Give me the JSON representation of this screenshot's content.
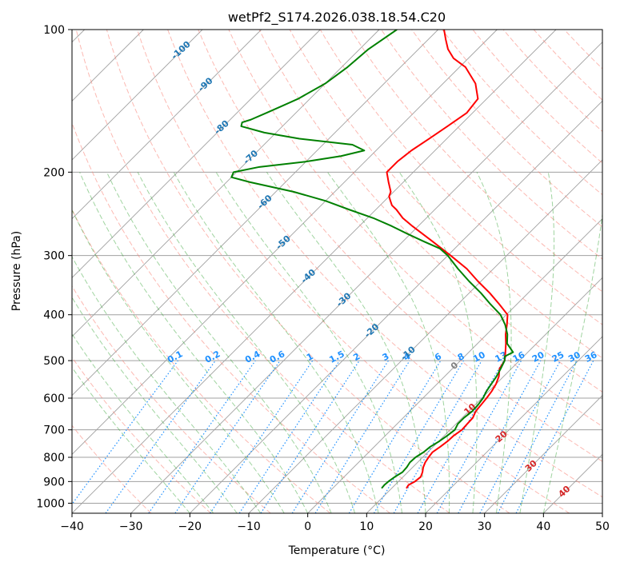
{
  "chart_data": {
    "type": "skew-t",
    "title": "wetPf2_S174.2026.038.18.54.C20",
    "xlabel": "Temperature (°C)",
    "ylabel": "Pressure (hPa)",
    "xlim": [
      -40,
      50
    ],
    "ylim": [
      1050,
      100
    ],
    "x_ticks": [
      "−40",
      "−30",
      "−20",
      "−10",
      "0",
      "10",
      "20",
      "30",
      "40",
      "50"
    ],
    "x_tick_values": [
      -40,
      -30,
      -20,
      -10,
      0,
      10,
      20,
      30,
      40,
      50
    ],
    "y_ticks": [
      "100",
      "200",
      "300",
      "400",
      "500",
      "600",
      "700",
      "800",
      "900",
      "1000"
    ],
    "y_tick_values": [
      100,
      200,
      300,
      400,
      500,
      600,
      700,
      800,
      900,
      1000
    ],
    "skew": 35,
    "colors": {
      "temperature": "#ff0000",
      "dewpoint": "#008000",
      "isotherm": "#808080",
      "isobar": "#a0a0a0",
      "dry_adiabat": "#fa8072",
      "moist_adiabat": "#2ca02c",
      "mixing_ratio": "#1e90ff",
      "isotherm_label_cold": "#1f77b4",
      "isotherm_label_warm": "#d62728",
      "zero_label": "#808080"
    },
    "series": [
      {
        "name": "Temperature",
        "pressure": [
          930,
          915,
          900,
          880,
          860,
          840,
          820,
          800,
          780,
          760,
          740,
          720,
          700,
          680,
          660,
          640,
          620,
          600,
          580,
          560,
          540,
          520,
          500,
          480,
          460,
          440,
          420,
          400,
          380,
          360,
          340,
          320,
          300,
          280,
          260,
          250,
          240,
          235,
          230,
          225,
          220,
          210,
          200,
          190,
          180,
          170,
          160,
          150,
          140,
          130,
          120,
          115,
          110,
          105,
          100
        ],
        "values": [
          12.5,
          12.3,
          12.8,
          13,
          12.5,
          11.8,
          11.3,
          11,
          10.8,
          11.2,
          11.5,
          11.6,
          12,
          11.9,
          11.8,
          11.2,
          11,
          10.8,
          10.5,
          10,
          9.2,
          8,
          7.5,
          6.2,
          4.8,
          3.2,
          1.8,
          0.2,
          -3,
          -6.5,
          -10.5,
          -14.5,
          -19.5,
          -25,
          -31,
          -34,
          -36.5,
          -38,
          -39,
          -40,
          -40.5,
          -42.5,
          -44.5,
          -44.5,
          -44,
          -43,
          -42,
          -41,
          -41.5,
          -44.5,
          -49,
          -52.5,
          -55,
          -57,
          -59
        ]
      },
      {
        "name": "Dewpoint",
        "pressure": [
          930,
          915,
          900,
          880,
          860,
          840,
          820,
          800,
          780,
          760,
          740,
          720,
          700,
          680,
          660,
          640,
          620,
          600,
          580,
          560,
          540,
          520,
          500,
          490,
          480,
          460,
          440,
          420,
          400,
          380,
          360,
          340,
          320,
          300,
          290,
          280,
          270,
          260,
          250,
          240,
          230,
          220,
          210,
          205,
          200,
          195,
          190,
          185,
          180,
          175,
          170,
          165,
          160,
          157,
          155,
          150,
          145,
          140,
          130,
          120,
          110,
          100
        ],
        "values": [
          8.3,
          8.2,
          8.3,
          8.6,
          9.1,
          9,
          8.7,
          8.8,
          9.3,
          9.5,
          10.1,
          10.5,
          10.8,
          10.3,
          10.3,
          10.6,
          10.5,
          10.2,
          9.6,
          9.2,
          8.8,
          8.2,
          7.5,
          6.8,
          7.5,
          5,
          3.5,
          1.5,
          -1,
          -4.5,
          -8,
          -12,
          -16,
          -20,
          -22.5,
          -26.5,
          -30.5,
          -34.5,
          -39,
          -44.5,
          -50,
          -57,
          -66,
          -70,
          -70.5,
          -67,
          -60,
          -55,
          -52,
          -55,
          -65,
          -72,
          -77,
          -77.5,
          -76.5,
          -75,
          -73.5,
          -72,
          -70,
          -69,
          -68.5,
          -67
        ]
      }
    ],
    "dry_adiabats_theta_c": [
      -30,
      -20,
      -10,
      0,
      10,
      20,
      30,
      40,
      50,
      60,
      70,
      80,
      90,
      100,
      110,
      120,
      130,
      140,
      150,
      160,
      170,
      180
    ],
    "moist_adiabats_start_c": [
      -20,
      -16,
      -12,
      -8,
      -4,
      0,
      4,
      8,
      12,
      16,
      20,
      24,
      28,
      32,
      36,
      40
    ],
    "mixing_ratio_gkg": [
      0.1,
      0.2,
      0.4,
      0.6,
      1,
      1.5,
      2,
      3,
      4,
      6,
      8,
      10,
      13,
      16,
      20,
      25,
      30,
      36
    ],
    "mixing_ratio_labels": [
      "0.1",
      "0.2",
      "0.4",
      "0.6",
      "1",
      "1.5",
      "2",
      "3",
      "4",
      "6",
      "8",
      "10",
      "13",
      "16",
      "20",
      "25",
      "30",
      "36"
    ],
    "isotherm_labels": [
      "-100",
      "-90",
      "-80",
      "-70",
      "-60",
      "-50",
      "-40",
      "-30",
      "-20",
      "-10",
      "0",
      "10",
      "20",
      "30",
      "40"
    ],
    "isotherm_label_values": [
      -100,
      -90,
      -80,
      -70,
      -60,
      -50,
      -40,
      -30,
      -20,
      -10,
      0,
      10,
      20,
      30,
      40
    ],
    "isotherm_label_pressures": [
      110,
      130,
      160,
      185,
      230,
      280,
      330,
      370,
      430,
      480,
      510,
      630,
      720,
      830,
      940
    ]
  }
}
